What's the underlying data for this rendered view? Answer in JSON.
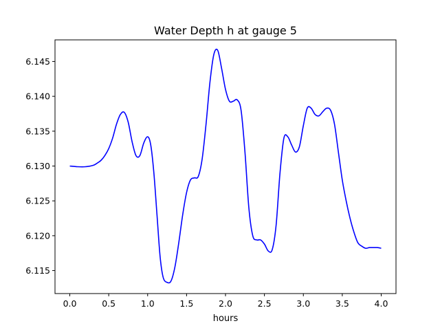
{
  "chart_data": {
    "type": "line",
    "title": "Water Depth h at gauge 5",
    "xlabel": "hours",
    "ylabel": "",
    "xlim": [
      -0.19,
      4.19
    ],
    "ylim": [
      6.1117,
      6.1481
    ],
    "xticks": [
      0.0,
      0.5,
      1.0,
      1.5,
      2.0,
      2.5,
      3.0,
      3.5,
      4.0
    ],
    "xtick_labels": [
      "0.0",
      "0.5",
      "1.0",
      "1.5",
      "2.0",
      "2.5",
      "3.0",
      "3.5",
      "4.0"
    ],
    "yticks": [
      6.115,
      6.12,
      6.125,
      6.13,
      6.135,
      6.14,
      6.145
    ],
    "ytick_labels": [
      "6.115",
      "6.120",
      "6.125",
      "6.130",
      "6.135",
      "6.140",
      "6.145"
    ],
    "grid": false,
    "series": [
      {
        "color": "#0000ff",
        "x": [
          0.0,
          0.1,
          0.2,
          0.3,
          0.35,
          0.4,
          0.45,
          0.5,
          0.55,
          0.6,
          0.65,
          0.7,
          0.75,
          0.8,
          0.85,
          0.9,
          0.95,
          1.0,
          1.04,
          1.08,
          1.12,
          1.16,
          1.2,
          1.25,
          1.3,
          1.35,
          1.4,
          1.45,
          1.5,
          1.55,
          1.6,
          1.65,
          1.7,
          1.75,
          1.8,
          1.85,
          1.9,
          1.95,
          2.0,
          2.05,
          2.1,
          2.15,
          2.2,
          2.25,
          2.3,
          2.35,
          2.4,
          2.45,
          2.5,
          2.55,
          2.6,
          2.65,
          2.7,
          2.75,
          2.8,
          2.85,
          2.9,
          2.95,
          3.0,
          3.05,
          3.1,
          3.15,
          3.2,
          3.25,
          3.3,
          3.35,
          3.4,
          3.45,
          3.5,
          3.55,
          3.6,
          3.65,
          3.7,
          3.75,
          3.8,
          3.85,
          3.9,
          3.95,
          4.0
        ],
        "y": [
          6.13,
          6.1299,
          6.1299,
          6.1301,
          6.1304,
          6.1308,
          6.1315,
          6.1325,
          6.134,
          6.136,
          6.1374,
          6.1377,
          6.1363,
          6.1335,
          6.1315,
          6.1315,
          6.1333,
          6.1342,
          6.133,
          6.129,
          6.123,
          6.117,
          6.114,
          6.1133,
          6.1135,
          6.1155,
          6.119,
          6.123,
          6.1262,
          6.128,
          6.1283,
          6.1285,
          6.131,
          6.136,
          6.142,
          6.146,
          6.1466,
          6.144,
          6.141,
          6.1393,
          6.1393,
          6.1395,
          6.138,
          6.132,
          6.124,
          6.12,
          6.1194,
          6.1194,
          6.1188,
          6.1178,
          6.118,
          6.1215,
          6.129,
          6.134,
          6.1342,
          6.133,
          6.132,
          6.1328,
          6.1358,
          6.1383,
          6.1383,
          6.1374,
          6.1372,
          6.1378,
          6.1383,
          6.138,
          6.136,
          6.132,
          6.128,
          6.125,
          6.1225,
          6.1205,
          6.119,
          6.1185,
          6.1182,
          6.1183,
          6.1183,
          6.1183,
          6.1182
        ]
      }
    ]
  }
}
